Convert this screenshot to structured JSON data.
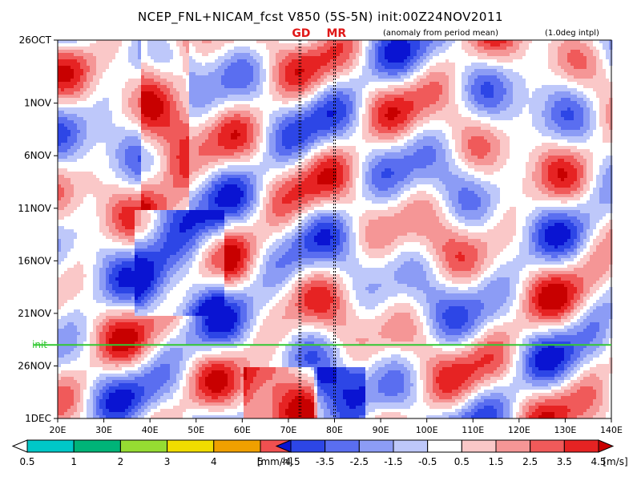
{
  "title": "NCEP_FNL+NICAM_fcst V850 (5S-5N) init:00Z24NOV2011",
  "note_anomaly": "(anomaly from period mean)",
  "note_interp": "(1.0deg intpl)",
  "markers": [
    {
      "label": "GD",
      "lon": 72.5
    },
    {
      "label": "MR",
      "lon": 80
    }
  ],
  "chart_data": {
    "type": "heatmap",
    "x_axis": {
      "range": [
        20,
        140
      ],
      "ticks": [
        20,
        30,
        40,
        50,
        60,
        70,
        80,
        90,
        100,
        110,
        120,
        130,
        140
      ],
      "tick_labels": [
        "20E",
        "30E",
        "40E",
        "50E",
        "60E",
        "70E",
        "80E",
        "90E",
        "100E",
        "110E",
        "120E",
        "130E",
        "140E"
      ]
    },
    "y_axis": {
      "range_days": [
        "26OCT",
        "1DEC"
      ],
      "ticks": [
        "26OCT",
        "1NOV",
        "6NOV",
        "11NOV",
        "16NOV",
        "21NOV",
        "26NOV",
        "1DEC"
      ]
    },
    "init_line": {
      "label": "init",
      "date": "24NOV",
      "color": "#32c832"
    },
    "precip_colorbar": {
      "unit": "[mm/h]",
      "levels": [
        "0.5",
        "1",
        "2",
        "3",
        "4",
        "5"
      ],
      "colors": [
        "#ffffff",
        "#00c8c8",
        "#00b478",
        "#96dc32",
        "#f0dc00",
        "#f0a000",
        "#f05050"
      ]
    },
    "wind_colorbar": {
      "unit": "[m/s]",
      "levels": [
        "-4.5",
        "-3.5",
        "-2.5",
        "-1.5",
        "-0.5",
        "0.5",
        "1.5",
        "2.5",
        "3.5",
        "4.5"
      ],
      "colors": [
        "#0a14d2",
        "#2d46e6",
        "#5a6ef0",
        "#8c9cf5",
        "#bec8fa",
        "#ffffff",
        "#fac8c8",
        "#f59696",
        "#f05a5a",
        "#e62323",
        "#c80000"
      ]
    }
  }
}
